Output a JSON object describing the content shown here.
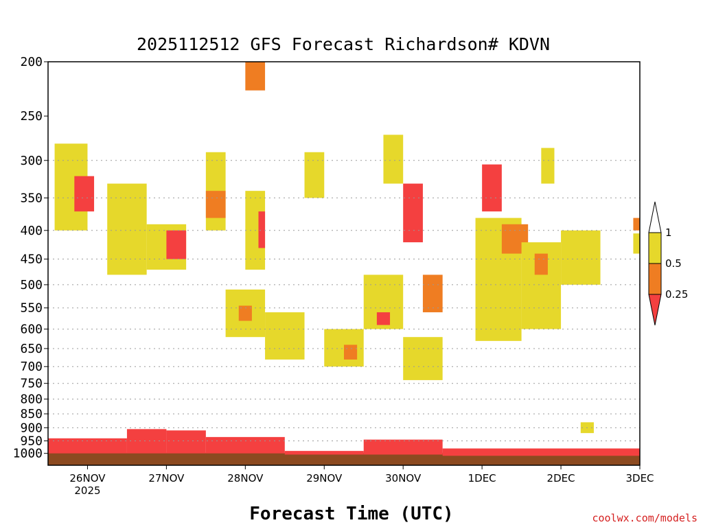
{
  "title": "2025112512 GFS Forecast Richardson# KDVN",
  "credit": "coolwx.com/models",
  "chart_data": {
    "type": "heatmap",
    "title": "2025112512 GFS Forecast Richardson# KDVN",
    "xlabel": "Forecast Time (UTC)",
    "ylabel": "",
    "x_ticks": [
      "26NOV",
      "27NOV",
      "28NOV",
      "29NOV",
      "30NOV",
      "1DEC",
      "2DEC",
      "3DEC"
    ],
    "x_subtick": "2025",
    "xlim": [
      "2025-11-25T12:00Z",
      "2025-12-03T00:00Z"
    ],
    "y_axis": "pressure (log scale, inverted)",
    "y_ticks": [
      200,
      250,
      300,
      350,
      400,
      450,
      500,
      550,
      600,
      650,
      700,
      750,
      800,
      850,
      900,
      950,
      1000
    ],
    "ylim": [
      1050,
      200
    ],
    "grid": "dotted horizontal lines at 300–950 levels",
    "legend": {
      "placement": "right",
      "labels": [
        "1",
        "0.5",
        "0.25"
      ],
      "bins": [
        {
          "range": "0.5 to 1",
          "color": "#e6d82b"
        },
        {
          "range": "0.25 to 0.5",
          "color": "#ef7d22"
        },
        {
          "range": "< 0.25",
          "color": "#f44040"
        }
      ]
    },
    "ground_color": "#8c4a20",
    "regions": [
      {
        "t": [
          "11-25 12",
          "11-26 12"
        ],
        "p": [
          1000,
          940
        ],
        "bin": "< 0.25"
      },
      {
        "t": [
          "11-26 12",
          "11-27 00"
        ],
        "p": [
          1000,
          905
        ],
        "bin": "< 0.25"
      },
      {
        "t": [
          "11-27 00",
          "11-27 12"
        ],
        "p": [
          1000,
          910
        ],
        "bin": "< 0.25"
      },
      {
        "t": [
          "11-27 12",
          "11-28 12"
        ],
        "p": [
          1000,
          935
        ],
        "bin": "< 0.25"
      },
      {
        "t": [
          "11-28 12",
          "11-29 12"
        ],
        "p": [
          1005,
          990
        ],
        "bin": "< 0.25"
      },
      {
        "t": [
          "11-29 12",
          "11-30 12"
        ],
        "p": [
          1005,
          945
        ],
        "bin": "< 0.25"
      },
      {
        "t": [
          "11-30 12",
          "12-03 00"
        ],
        "p": [
          1010,
          980
        ],
        "bin": "< 0.25"
      },
      {
        "t": [
          "11-25 14",
          "11-26 00"
        ],
        "p": [
          400,
          280
        ],
        "bin": "0.5 to 1"
      },
      {
        "t": [
          "11-25 20",
          "11-26 02"
        ],
        "p": [
          370,
          320
        ],
        "bin": "< 0.25"
      },
      {
        "t": [
          "11-26 06",
          "11-26 18"
        ],
        "p": [
          480,
          330
        ],
        "bin": "0.5 to 1"
      },
      {
        "t": [
          "11-26 18",
          "11-27 06"
        ],
        "p": [
          470,
          390
        ],
        "bin": "0.5 to 1"
      },
      {
        "t": [
          "11-27 00",
          "11-27 06"
        ],
        "p": [
          450,
          400
        ],
        "bin": "< 0.25"
      },
      {
        "t": [
          "11-27 12",
          "11-27 18"
        ],
        "p": [
          400,
          290
        ],
        "bin": "0.5 to 1"
      },
      {
        "t": [
          "11-27 12",
          "11-27 18"
        ],
        "p": [
          380,
          340
        ],
        "bin": "0.25 to 0.5"
      },
      {
        "t": [
          "11-27 18",
          "11-28 06"
        ],
        "p": [
          620,
          510
        ],
        "bin": "0.5 to 1"
      },
      {
        "t": [
          "11-27 22",
          "11-28 02"
        ],
        "p": [
          580,
          545
        ],
        "bin": "0.25 to 0.5"
      },
      {
        "t": [
          "11-28 00",
          "11-28 06"
        ],
        "p": [
          470,
          340
        ],
        "bin": "0.5 to 1"
      },
      {
        "t": [
          "11-28 04",
          "11-28 06"
        ],
        "p": [
          430,
          370
        ],
        "bin": "< 0.25"
      },
      {
        "t": [
          "11-28 00",
          "11-28 06"
        ],
        "p": [
          225,
          200
        ],
        "bin": "0.25 to 0.5"
      },
      {
        "t": [
          "11-28 06",
          "11-28 18"
        ],
        "p": [
          680,
          560
        ],
        "bin": "0.5 to 1"
      },
      {
        "t": [
          "11-28 18",
          "11-29 00"
        ],
        "p": [
          350,
          290
        ],
        "bin": "0.5 to 1"
      },
      {
        "t": [
          "11-29 00",
          "11-29 12"
        ],
        "p": [
          700,
          600
        ],
        "bin": "0.5 to 1"
      },
      {
        "t": [
          "11-29 06",
          "11-29 10"
        ],
        "p": [
          680,
          640
        ],
        "bin": "0.25 to 0.5"
      },
      {
        "t": [
          "11-29 12",
          "11-30 00"
        ],
        "p": [
          600,
          480
        ],
        "bin": "0.5 to 1"
      },
      {
        "t": [
          "11-29 16",
          "11-29 20"
        ],
        "p": [
          590,
          560
        ],
        "bin": "< 0.25"
      },
      {
        "t": [
          "11-29 18",
          "11-30 00"
        ],
        "p": [
          330,
          270
        ],
        "bin": "0.5 to 1"
      },
      {
        "t": [
          "11-30 00",
          "11-30 06"
        ],
        "p": [
          420,
          330
        ],
        "bin": "< 0.25"
      },
      {
        "t": [
          "11-30 00",
          "11-30 12"
        ],
        "p": [
          740,
          620
        ],
        "bin": "0.5 to 1"
      },
      {
        "t": [
          "11-30 06",
          "11-30 12"
        ],
        "p": [
          560,
          480
        ],
        "bin": "0.25 to 0.5"
      },
      {
        "t": [
          "12-01 00",
          "12-01 06"
        ],
        "p": [
          370,
          305
        ],
        "bin": "< 0.25"
      },
      {
        "t": [
          "11-30 22",
          "12-01 12"
        ],
        "p": [
          630,
          380
        ],
        "bin": "0.5 to 1"
      },
      {
        "t": [
          "12-01 06",
          "12-01 14"
        ],
        "p": [
          440,
          390
        ],
        "bin": "0.25 to 0.5"
      },
      {
        "t": [
          "12-01 12",
          "12-02 00"
        ],
        "p": [
          600,
          420
        ],
        "bin": "0.5 to 1"
      },
      {
        "t": [
          "12-01 16",
          "12-01 20"
        ],
        "p": [
          480,
          440
        ],
        "bin": "0.25 to 0.5"
      },
      {
        "t": [
          "12-01 18",
          "12-01 22"
        ],
        "p": [
          330,
          285
        ],
        "bin": "0.5 to 1"
      },
      {
        "t": [
          "12-02 00",
          "12-02 12"
        ],
        "p": [
          500,
          400
        ],
        "bin": "0.5 to 1"
      },
      {
        "t": [
          "12-02 06",
          "12-02 10"
        ],
        "p": [
          920,
          880
        ],
        "bin": "0.5 to 1"
      },
      {
        "t": [
          "12-02 22",
          "12-03 00"
        ],
        "p": [
          400,
          380
        ],
        "bin": "0.25 to 0.5"
      },
      {
        "t": [
          "12-02 22",
          "12-03 00"
        ],
        "p": [
          440,
          405
        ],
        "bin": "0.5 to 1"
      }
    ]
  }
}
